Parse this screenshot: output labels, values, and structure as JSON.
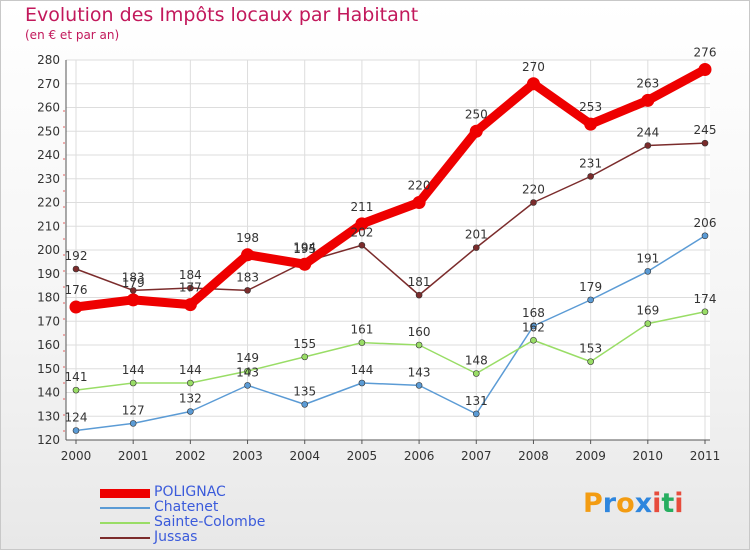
{
  "title": "Evolution des Impôts locaux par Habitant",
  "subtitle": "(en € et par an)",
  "logo": {
    "letters": [
      "P",
      "r",
      "o",
      "x",
      "i",
      "t",
      "i"
    ],
    "colors": [
      "#f39c12",
      "#2e86de",
      "#f39c12",
      "#2e86de",
      "#e74c3c",
      "#27ae60",
      "#e74c3c"
    ]
  },
  "chart_data": {
    "type": "line",
    "x": [
      "2000",
      "2001",
      "2002",
      "2003",
      "2004",
      "2005",
      "2006",
      "2007",
      "2008",
      "2009",
      "2010",
      "2011"
    ],
    "ylim": [
      120,
      280
    ],
    "yticks": [
      120,
      130,
      140,
      150,
      160,
      170,
      180,
      190,
      200,
      210,
      220,
      230,
      240,
      250,
      260,
      270,
      280
    ],
    "grid": true,
    "legend_position": "bottom-left",
    "series": [
      {
        "name": "POLIGNAC",
        "color": "#ee0000",
        "values": [
          176,
          179,
          177,
          198,
          194,
          211,
          220,
          250,
          270,
          253,
          263,
          276
        ],
        "labels": [
          "176",
          "179",
          "177",
          "198",
          "194",
          "211",
          "220",
          "250",
          "270",
          "253",
          "263",
          "276"
        ]
      },
      {
        "name": "Chatenet",
        "color": "#5b9bd5",
        "values": [
          124,
          127,
          132,
          143,
          135,
          144,
          143,
          131,
          168,
          179,
          191,
          206
        ],
        "labels": [
          "124",
          "127",
          "132",
          "143",
          "135",
          "144",
          "143",
          "131",
          "168",
          "179",
          "191",
          "206"
        ]
      },
      {
        "name": "Sainte-Colombe",
        "color": "#99dd66",
        "values": [
          141,
          144,
          144,
          149,
          155,
          161,
          160,
          148,
          162,
          153,
          169,
          174
        ],
        "labels": [
          "141",
          "144",
          "144",
          "149",
          "155",
          "161",
          "160",
          "148",
          "162",
          "153",
          "169",
          "174"
        ]
      },
      {
        "name": "Jussas",
        "color": "#7b2c2c",
        "values": [
          192,
          183,
          184,
          183,
          195,
          202,
          181,
          201,
          220,
          231,
          244,
          245
        ],
        "labels": [
          "192",
          "183",
          "184",
          "183",
          "195",
          "202",
          "181",
          "201",
          "220",
          "231",
          "244",
          "245"
        ]
      }
    ]
  }
}
